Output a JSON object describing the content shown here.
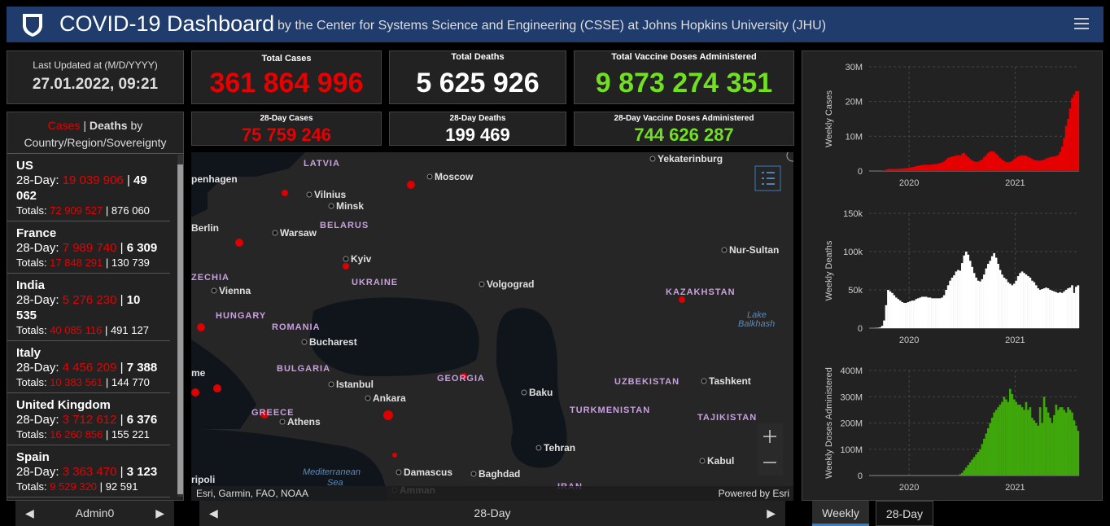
{
  "header": {
    "title": "COVID-19 Dashboard",
    "subtitle": "by the Center for Systems Science and Engineering (CSSE) at Johns Hopkins University (JHU)"
  },
  "last_updated": {
    "label": "Last Updated at (M/D/YYYY)",
    "value": "27.01.2022, 09:21"
  },
  "stats": {
    "total_cases": {
      "label": "Total Cases",
      "value": "361 864 996"
    },
    "total_deaths": {
      "label": "Total Deaths",
      "value": "5 625 926"
    },
    "total_vaccine": {
      "label": "Total Vaccine Doses Administered",
      "value": "9 873 274 351"
    },
    "d28_cases": {
      "label": "28-Day Cases",
      "value": "75 759 246"
    },
    "d28_deaths": {
      "label": "28-Day Deaths",
      "value": "199 469"
    },
    "d28_vaccine": {
      "label": "28-Day Vaccine Doses Administered",
      "value": "744 626 287"
    }
  },
  "country_list": {
    "header": {
      "cases": "Cases",
      "separator": "|",
      "deaths": "Deaths",
      "rest": "by Country/Region/Sovereignty"
    },
    "period_label": "28-Day:",
    "totals_label": "Totals:",
    "separator": "|",
    "rows": [
      {
        "name": "US",
        "d28_cases": "19 039 906",
        "d28_deaths": "49 062",
        "total_cases": "72 909 527",
        "total_deaths": "876 060"
      },
      {
        "name": "France",
        "d28_cases": "7 989 740",
        "d28_deaths": "6 309",
        "total_cases": "17 848 291",
        "total_deaths": "130 739"
      },
      {
        "name": "India",
        "d28_cases": "5 276 230",
        "d28_deaths": "10 535",
        "total_cases": "40 085 116",
        "total_deaths": "491 127"
      },
      {
        "name": "Italy",
        "d28_cases": "4 456 209",
        "d28_deaths": "7 388",
        "total_cases": "10 383 561",
        "total_deaths": "144 770"
      },
      {
        "name": "United Kingdom",
        "d28_cases": "3 712 612",
        "d28_deaths": "6 376",
        "total_cases": "16 260 856",
        "total_deaths": "155 221"
      },
      {
        "name": "Spain",
        "d28_cases": "3 363 470",
        "d28_deaths": "3 123",
        "total_cases": "9 529 320",
        "total_deaths": "92 591"
      }
    ]
  },
  "map": {
    "labels": [
      "LATVIA",
      "Moscow",
      "Yekaterinburg",
      "penhagen",
      "Vilnius",
      "Minsk",
      "BELARUS",
      "Berlin",
      "Warsaw",
      "Kyiv",
      "UKRAINE",
      "ZECHIA",
      "Vienna",
      "HUNGARY",
      "Volgograd",
      "Nur-Sultan",
      "KAZAKHSTAN",
      "Lake",
      "Balkhash",
      "ROMANIA",
      "Bucharest",
      "BULGARIA",
      "GEORGIA",
      "Istanbul",
      "UZBEKISTAN",
      "Tashkent",
      "Ankara",
      "Baku",
      "TURKMENISTAN",
      "GREECE",
      "Athens",
      "TAJIKISTAN",
      "Tehran",
      "Mediterranean",
      "Sea",
      "Damascus",
      "Baghdad",
      "Kabul",
      "IRAN",
      "Amman",
      "ripoli",
      "me"
    ],
    "attribution": "Esri, Garmin, FAO, NOAA",
    "powered": "Powered by Esri"
  },
  "tabs": {
    "left": "Admin0",
    "center": "28-Day",
    "weekly": "Weekly",
    "d28": "28-Day"
  },
  "chart_data": [
    {
      "type": "bar",
      "y_label": "Weekly Cases",
      "color": "#e60000",
      "grid": true,
      "ylim": [
        0,
        30000000
      ],
      "yticks": [
        0,
        {
          "value": 10000000,
          "label": "10M"
        },
        {
          "value": 20000000,
          "label": "20M"
        },
        {
          "value": 30000000,
          "label": "30M"
        }
      ],
      "xlim": [
        0,
        105
      ],
      "xticks": [
        {
          "value": 20,
          "label": "2020"
        },
        {
          "value": 73,
          "label": "2021"
        }
      ],
      "values": [
        10000.0,
        20000.0,
        15000.0,
        10000.0,
        10000.0,
        20000.0,
        50000.0,
        150000.0,
        400000.0,
        550000.0,
        600000.0,
        600000.0,
        550000.0,
        600000.0,
        600000.0,
        650000.0,
        700000.0,
        750000.0,
        800000.0,
        900000.0,
        1000000.0,
        1100000.0,
        1200000.0,
        1400000.0,
        1500000.0,
        1600000.0,
        1700000.0,
        1800000.0,
        1800000.0,
        1800000.0,
        1800000.0,
        1900000.0,
        2000000.0,
        2000000.0,
        2100000.0,
        2300000.0,
        2500000.0,
        2800000.0,
        3300000.0,
        3800000.0,
        4000000.0,
        4200000.0,
        4300000.0,
        4500000.0,
        4600000.0,
        4400000.0,
        5000000.0,
        5200000.0,
        4600000.0,
        4000000.0,
        3500000.0,
        3000000.0,
        2800000.0,
        2600000.0,
        2700000.0,
        3000000.0,
        3300000.0,
        4000000.0,
        4600000.0,
        5200000.0,
        5600000.0,
        5700000.0,
        5500000.0,
        5000000.0,
        4400000.0,
        3800000.0,
        3300000.0,
        2900000.0,
        2600000.0,
        2500000.0,
        2600000.0,
        2900000.0,
        3400000.0,
        3800000.0,
        4200000.0,
        4400000.0,
        4500000.0,
        4500000.0,
        4400000.0,
        4100000.0,
        3800000.0,
        3500000.0,
        3200000.0,
        3100000.0,
        3000000.0,
        3000000.0,
        3100000.0,
        3300000.0,
        3600000.0,
        3800000.0,
        4000000.0,
        4100000.0,
        4200000.0,
        4300000.0,
        4600000.0,
        5500000.0,
        7000000.0,
        9500000.0,
        13000000.0,
        15000000.0,
        18000000.0,
        21000000.0,
        22000000.0,
        23000000.0,
        23000000.0
      ]
    },
    {
      "type": "bar",
      "y_label": "Weekly Deaths",
      "color": "#ffffff",
      "grid": true,
      "ylim": [
        0,
        150000
      ],
      "yticks": [
        0,
        {
          "value": 50000,
          "label": "50k"
        },
        {
          "value": 100000,
          "label": "100k"
        },
        {
          "value": 150000,
          "label": "150k"
        }
      ],
      "xlim": [
        0,
        105
      ],
      "xticks": [
        {
          "value": 20,
          "label": "2020"
        },
        {
          "value": 73,
          "label": "2021"
        }
      ],
      "values": [
        0,
        0,
        100,
        300,
        500,
        1000,
        3000,
        10000.0,
        30000.0,
        50000.0,
        48000.0,
        46000.0,
        43000.0,
        40000.0,
        38000.0,
        36000.0,
        34000.0,
        33000.0,
        33000.0,
        34000.0,
        35000.0,
        36000.0,
        36000.0,
        38000.0,
        39000.0,
        40000.0,
        41000.0,
        41000.0,
        41000.0,
        40000.0,
        40000.0,
        39000.0,
        39000.0,
        39000.0,
        39000.0,
        39000.0,
        40000.0,
        43000.0,
        50000.0,
        56000.0,
        62000.0,
        66000.0,
        69000.0,
        74000.0,
        76000.0,
        75000.0,
        85000.0,
        95000.0,
        100000.0,
        96000.0,
        88000.0,
        80000.0,
        72000.0,
        66000.0,
        62000.0,
        61000.0,
        64000.0,
        70000.0,
        78000.0,
        84000.0,
        88000.0,
        94000.0,
        98000.0,
        92000.0,
        84000.0,
        76000.0,
        70000.0,
        66000.0,
        64000.0,
        60000.0,
        58000.0,
        56000.0,
        58000.0,
        62000.0,
        68000.0,
        72000.0,
        74000.0,
        72000.0,
        70000.0,
        68000.0,
        66000.0,
        62000.0,
        60000.0,
        56000.0,
        52000.0,
        50000.0,
        51000.0,
        52000.0,
        53000.0,
        52000.0,
        50000.0,
        49000.0,
        48000.0,
        47000.0,
        46000.0,
        47000.0,
        46000.0,
        48000.0,
        50000.0,
        52000.0,
        53000.0,
        56000.0,
        46000.0,
        54000.0,
        56000.0
      ]
    },
    {
      "type": "bar",
      "y_label": "Weekly Doses Administered",
      "color": "#3fa60b",
      "grid": true,
      "ylim": [
        0,
        400000000
      ],
      "yticks": [
        0,
        {
          "value": 100000000,
          "label": "100M"
        },
        {
          "value": 200000000,
          "label": "200M"
        },
        {
          "value": 300000000,
          "label": "300M"
        },
        {
          "value": 400000000,
          "label": "400M"
        }
      ],
      "xlim": [
        0,
        105
      ],
      "xticks": [
        {
          "value": 20,
          "label": "2020"
        },
        {
          "value": 73,
          "label": "2021"
        }
      ],
      "values": [
        0,
        0,
        0,
        0,
        0,
        0,
        0,
        0,
        0,
        0,
        0,
        0,
        0,
        0,
        0,
        0,
        0,
        0,
        0,
        0,
        0,
        0,
        0,
        0,
        0,
        0,
        0,
        0,
        0,
        0,
        0,
        0,
        0,
        0,
        0,
        0,
        0,
        0,
        0,
        0,
        0,
        0,
        0,
        0,
        1000000.0,
        5000000.0,
        10000000.0,
        20000000.0,
        30000000.0,
        40000000.0,
        50000000.0,
        60000000.0,
        70000000.0,
        80000000.0,
        90000000.0,
        100000000.0,
        120000000.0,
        140000000.0,
        160000000.0,
        180000000.0,
        200000000.0,
        220000000.0,
        240000000.0,
        250000000.0,
        260000000.0,
        270000000.0,
        280000000.0,
        300000000.0,
        290000000.0,
        280000000.0,
        330000000.0,
        310000000.0,
        290000000.0,
        280000000.0,
        270000000.0,
        270000000.0,
        260000000.0,
        250000000.0,
        280000000.0,
        250000000.0,
        260000000.0,
        220000000.0,
        210000000.0,
        200000000.0,
        190000000.0,
        260000000.0,
        200000000.0,
        300000000.0,
        260000000.0,
        240000000.0,
        220000000.0,
        200000000.0,
        230000000.0,
        270000000.0,
        250000000.0,
        260000000.0,
        260000000.0,
        250000000.0,
        240000000.0,
        260000000.0,
        250000000.0,
        240000000.0,
        210000000.0,
        190000000.0,
        170000000.0
      ]
    }
  ]
}
